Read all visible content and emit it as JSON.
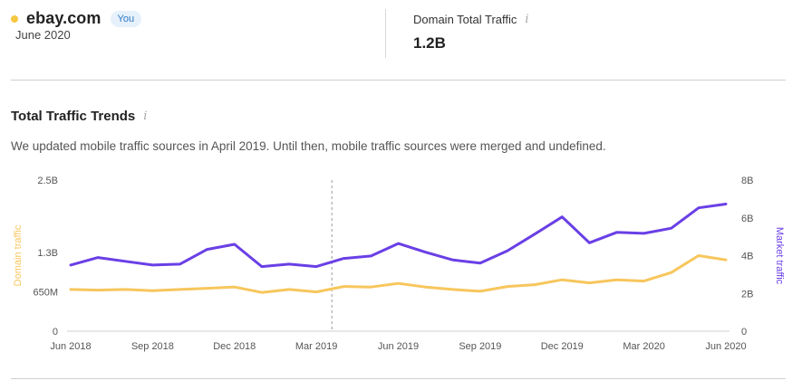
{
  "header": {
    "domain": "ebay.com",
    "badge": "You",
    "period": "June 2020",
    "dot_color": "#f5c842",
    "metric": {
      "title": "Domain Total Traffic",
      "value": "1.2B",
      "info_icon": "i"
    }
  },
  "section": {
    "title": "Total Traffic Trends",
    "info_icon": "i",
    "notice": "We updated mobile traffic sources in April 2019. Until then, mobile traffic sources were merged and undefined."
  },
  "chart_data": {
    "type": "line",
    "x": [
      "Jun 2018",
      "Jul 2018",
      "Aug 2018",
      "Sep 2018",
      "Oct 2018",
      "Nov 2018",
      "Dec 2018",
      "Jan 2019",
      "Feb 2019",
      "Mar 2019",
      "Apr 2019",
      "May 2019",
      "Jun 2019",
      "Jul 2019",
      "Aug 2019",
      "Sep 2019",
      "Oct 2019",
      "Nov 2019",
      "Dec 2019",
      "Jan 2020",
      "Feb 2020",
      "Mar 2020",
      "Apr 2020",
      "May 2020",
      "Jun 2020"
    ],
    "x_tick_labels": [
      "Jun 2018",
      "Sep 2018",
      "Dec 2018",
      "Mar 2019",
      "Jun 2019",
      "Sep 2019",
      "Dec 2019",
      "Mar 2020",
      "Jun 2020"
    ],
    "y_left": {
      "label": "Domain traffic",
      "ticks": [
        "0",
        "650M",
        "1.3B",
        "2.5B"
      ],
      "tick_values": [
        0,
        650000000,
        1300000000,
        2500000000
      ],
      "range": [
        0,
        2500000000
      ]
    },
    "y_right": {
      "label": "Market traffic",
      "ticks": [
        "0",
        "2B",
        "4B",
        "6B",
        "8B"
      ],
      "tick_values": [
        0,
        2000000000,
        4000000000,
        6000000000,
        8000000000
      ],
      "range": [
        0,
        8000000000
      ]
    },
    "annotation_marker": "Apr 2019",
    "series": [
      {
        "name": "Domain traffic",
        "axis": "left",
        "color": "#f7c65c",
        "values": [
          690000000,
          680000000,
          690000000,
          670000000,
          690000000,
          710000000,
          730000000,
          640000000,
          690000000,
          650000000,
          740000000,
          730000000,
          790000000,
          730000000,
          690000000,
          660000000,
          740000000,
          770000000,
          850000000,
          800000000,
          850000000,
          830000000,
          970000000,
          1250000000,
          1180000000
        ]
      },
      {
        "name": "Market traffic",
        "axis": "right",
        "color": "#6a3fe6",
        "values": [
          3500000000,
          3900000000,
          3700000000,
          3500000000,
          3550000000,
          4330000000,
          4600000000,
          3420000000,
          3550000000,
          3420000000,
          3850000000,
          3980000000,
          4640000000,
          4180000000,
          3770000000,
          3600000000,
          4260000000,
          5140000000,
          6050000000,
          4680000000,
          5230000000,
          5180000000,
          5450000000,
          6530000000,
          6730000000
        ]
      }
    ]
  }
}
